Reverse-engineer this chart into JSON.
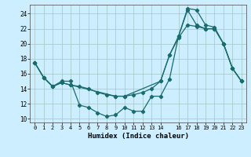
{
  "xlabel": "Humidex (Indice chaleur)",
  "background_color": "#cceeff",
  "grid_color": "#aacccc",
  "line_color": "#1a6b6b",
  "xlim": [
    -0.5,
    23.5
  ],
  "ylim": [
    9.5,
    25.2
  ],
  "yticks": [
    10,
    12,
    14,
    16,
    18,
    20,
    22,
    24
  ],
  "xticks": [
    0,
    1,
    2,
    3,
    4,
    5,
    6,
    7,
    8,
    9,
    10,
    11,
    12,
    13,
    14,
    16,
    17,
    18,
    19,
    20,
    21,
    22,
    23
  ],
  "line1_x": [
    0,
    1,
    2,
    3,
    4,
    5,
    6,
    7,
    8,
    9,
    10,
    11,
    12,
    13,
    14,
    15,
    16,
    17,
    18,
    19,
    20,
    21,
    22,
    23
  ],
  "line1_y": [
    17.5,
    15.5,
    14.3,
    15.0,
    15.0,
    11.8,
    11.5,
    10.8,
    10.3,
    10.5,
    11.5,
    11.0,
    11.0,
    13.0,
    13.0,
    15.3,
    21.0,
    24.7,
    24.5,
    22.5,
    22.2,
    20.0,
    16.7,
    15.0
  ],
  "line2_x": [
    0,
    1,
    2,
    3,
    4,
    5,
    6,
    7,
    8,
    9,
    10,
    11,
    12,
    13,
    14,
    15,
    16,
    17,
    18,
    19,
    20,
    21,
    22,
    23
  ],
  "line2_y": [
    17.5,
    15.5,
    14.3,
    14.8,
    14.5,
    14.3,
    14.0,
    13.5,
    13.2,
    13.0,
    13.0,
    13.2,
    13.5,
    14.0,
    15.0,
    18.5,
    20.8,
    22.5,
    22.3,
    22.0,
    22.0,
    20.0,
    16.7,
    15.0
  ],
  "line3_x": [
    0,
    1,
    2,
    3,
    4,
    9,
    10,
    14,
    15,
    16,
    17,
    18,
    19,
    20,
    21,
    22,
    23
  ],
  "line3_y": [
    17.5,
    15.5,
    14.3,
    14.8,
    14.5,
    13.0,
    13.0,
    15.0,
    18.5,
    21.0,
    24.5,
    22.5,
    22.0,
    22.0,
    20.0,
    16.7,
    15.0
  ]
}
